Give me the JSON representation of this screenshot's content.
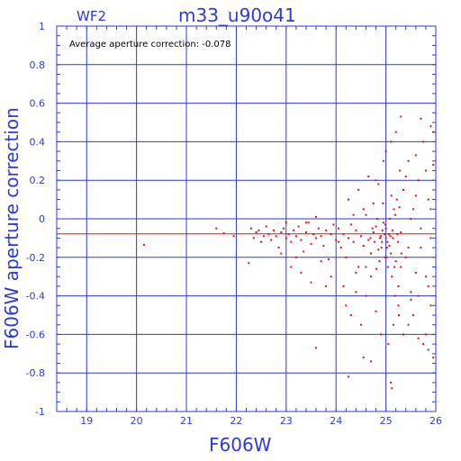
{
  "chart_data": {
    "type": "scatter",
    "detector_label": "WF2",
    "title": "m33_u90o41",
    "xlabel": "F606W",
    "ylabel": "F606W aperture correction",
    "annotation": "Average aperture correction: -0.078",
    "average": -0.078,
    "xlim": [
      18.4,
      26.0
    ],
    "ylim": [
      -1.0,
      1.0
    ],
    "x_ticks": [
      19,
      20,
      21,
      22,
      23,
      24,
      25,
      26
    ],
    "y_ticks": [
      -1,
      -0.8,
      -0.6,
      -0.4,
      -0.2,
      0,
      0.2,
      0.4,
      0.6,
      0.8,
      1
    ],
    "y_tick_labels": [
      "-1",
      "-0.8",
      "-0.6",
      "-0.4",
      "-0.2",
      "0",
      "0.2",
      "0.4",
      "0.6",
      "0.8",
      "1"
    ],
    "grid": true,
    "colors": {
      "axes": "#2b3bd6",
      "points": "#e01010",
      "average_line": "#e01010"
    },
    "points": [
      [
        20.15,
        -0.135
      ],
      [
        21.6,
        -0.05
      ],
      [
        21.75,
        -0.075
      ],
      [
        21.95,
        -0.09
      ],
      [
        22.25,
        -0.23
      ],
      [
        22.3,
        -0.05
      ],
      [
        22.35,
        -0.1
      ],
      [
        22.4,
        -0.07
      ],
      [
        22.45,
        -0.06
      ],
      [
        22.5,
        -0.12
      ],
      [
        22.55,
        -0.09
      ],
      [
        22.6,
        -0.04
      ],
      [
        22.65,
        -0.08
      ],
      [
        22.7,
        -0.11
      ],
      [
        22.75,
        -0.06
      ],
      [
        22.8,
        -0.09
      ],
      [
        22.85,
        -0.15
      ],
      [
        22.9,
        -0.07
      ],
      [
        22.95,
        -0.05
      ],
      [
        23.0,
        -0.1
      ],
      [
        23.05,
        -0.08
      ],
      [
        23.1,
        -0.12
      ],
      [
        23.15,
        -0.06
      ],
      [
        23.2,
        -0.09
      ],
      [
        23.25,
        -0.04
      ],
      [
        23.3,
        -0.11
      ],
      [
        23.35,
        -0.17
      ],
      [
        23.4,
        -0.07
      ],
      [
        23.45,
        -0.02
      ],
      [
        23.5,
        -0.13
      ],
      [
        23.55,
        -0.08
      ],
      [
        23.6,
        -0.1
      ],
      [
        23.65,
        -0.05
      ],
      [
        23.7,
        -0.09
      ],
      [
        23.75,
        -0.14
      ],
      [
        23.8,
        -0.06
      ],
      [
        23.85,
        -0.21
      ],
      [
        23.9,
        -0.08
      ],
      [
        23.95,
        -0.03
      ],
      [
        24.0,
        -0.11
      ],
      [
        23.1,
        -0.25
      ],
      [
        23.3,
        -0.28
      ],
      [
        23.5,
        -0.33
      ],
      [
        23.7,
        -0.22
      ],
      [
        23.9,
        -0.3
      ],
      [
        23.6,
        -0.67
      ],
      [
        23.2,
        -0.2
      ],
      [
        23.8,
        -0.35
      ],
      [
        23.4,
        -0.02
      ],
      [
        23.0,
        -0.02
      ],
      [
        22.9,
        -0.18
      ],
      [
        23.6,
        0.01
      ],
      [
        24.05,
        -0.05
      ],
      [
        24.1,
        -0.15
      ],
      [
        24.15,
        -0.08
      ],
      [
        24.2,
        -0.2
      ],
      [
        24.25,
        -0.1
      ],
      [
        24.3,
        -0.03
      ],
      [
        24.35,
        -0.12
      ],
      [
        24.4,
        -0.06
      ],
      [
        24.45,
        -0.25
      ],
      [
        24.5,
        -0.09
      ],
      [
        24.55,
        -0.14
      ],
      [
        24.6,
        0.02
      ],
      [
        24.65,
        -0.11
      ],
      [
        24.7,
        -0.18
      ],
      [
        24.75,
        -0.07
      ],
      [
        24.8,
        -0.04
      ],
      [
        24.85,
        -0.16
      ],
      [
        24.9,
        -0.09
      ],
      [
        24.2,
        -0.45
      ],
      [
        24.3,
        -0.5
      ],
      [
        24.4,
        -0.38
      ],
      [
        24.5,
        -0.55
      ],
      [
        24.6,
        -0.4
      ],
      [
        24.7,
        -0.3
      ],
      [
        24.8,
        -0.48
      ],
      [
        24.9,
        -0.6
      ],
      [
        24.25,
        0.1
      ],
      [
        24.45,
        0.15
      ],
      [
        24.55,
        0.05
      ],
      [
        24.65,
        0.22
      ],
      [
        24.75,
        0.08
      ],
      [
        24.85,
        0.18
      ],
      [
        24.95,
        0.3
      ],
      [
        24.35,
        0.02
      ],
      [
        24.7,
        -0.74
      ],
      [
        24.55,
        -0.72
      ],
      [
        24.25,
        -0.82
      ],
      [
        24.8,
        0.2
      ],
      [
        24.6,
        -0.25
      ],
      [
        24.4,
        -0.28
      ],
      [
        24.15,
        -0.35
      ],
      [
        24.05,
        -0.12
      ],
      [
        24.95,
        -0.02
      ],
      [
        24.92,
        -0.12
      ],
      [
        24.98,
        -0.2
      ],
      [
        25.0,
        -0.05
      ],
      [
        25.02,
        -0.15
      ],
      [
        25.04,
        -0.25
      ],
      [
        25.06,
        -0.08
      ],
      [
        25.08,
        0.0
      ],
      [
        25.1,
        -0.18
      ],
      [
        25.12,
        -0.3
      ],
      [
        25.14,
        -0.1
      ],
      [
        25.16,
        0.05
      ],
      [
        25.18,
        -0.4
      ],
      [
        25.2,
        -0.22
      ],
      [
        25.22,
        0.1
      ],
      [
        25.24,
        -0.12
      ],
      [
        25.26,
        -0.5
      ],
      [
        25.28,
        0.25
      ],
      [
        25.0,
        0.35
      ],
      [
        25.05,
        -0.65
      ],
      [
        25.1,
        0.4
      ],
      [
        25.15,
        -0.55
      ],
      [
        25.2,
        0.45
      ],
      [
        25.25,
        -0.35
      ],
      [
        25.3,
        -0.07
      ],
      [
        25.35,
        0.15
      ],
      [
        25.4,
        -0.2
      ],
      [
        25.45,
        0.3
      ],
      [
        25.5,
        -0.42
      ],
      [
        25.55,
        0.05
      ],
      [
        25.6,
        -0.28
      ],
      [
        25.65,
        0.2
      ],
      [
        25.7,
        -0.15
      ],
      [
        25.75,
        0.4
      ],
      [
        25.8,
        -0.6
      ],
      [
        25.85,
        0.1
      ],
      [
        25.9,
        -0.45
      ],
      [
        25.95,
        0.28
      ],
      [
        25.3,
        0.53
      ],
      [
        25.7,
        0.52
      ],
      [
        25.9,
        0.48
      ],
      [
        25.95,
        0.45
      ],
      [
        25.1,
        -0.85
      ],
      [
        25.12,
        -0.88
      ],
      [
        25.5,
        -0.38
      ],
      [
        25.6,
        0.12
      ],
      [
        25.8,
        -0.3
      ],
      [
        25.9,
        0.05
      ],
      [
        25.35,
        -0.6
      ],
      [
        25.45,
        -0.15
      ],
      [
        25.55,
        -0.5
      ],
      [
        25.65,
        -0.62
      ],
      [
        25.75,
        -0.65
      ],
      [
        25.85,
        -0.68
      ],
      [
        25.95,
        -0.72
      ],
      [
        25.4,
        0.22
      ],
      [
        25.6,
        0.33
      ],
      [
        25.8,
        0.25
      ],
      [
        25.3,
        -0.25
      ],
      [
        25.5,
        0.0
      ],
      [
        25.7,
        -0.05
      ],
      [
        25.9,
        -0.1
      ],
      [
        25.25,
        -0.45
      ],
      [
        25.45,
        -0.55
      ],
      [
        25.65,
        -0.4
      ],
      [
        25.85,
        -0.35
      ],
      [
        25.0,
        -0.1
      ],
      [
        24.97,
        -0.08
      ],
      [
        25.03,
        -0.12
      ],
      [
        24.93,
        -0.06
      ],
      [
        25.07,
        -0.14
      ],
      [
        24.88,
        -0.1
      ],
      [
        25.01,
        -0.2
      ],
      [
        24.99,
        -0.03
      ],
      [
        25.09,
        -0.09
      ],
      [
        24.91,
        -0.15
      ],
      [
        25.13,
        -0.06
      ],
      [
        24.87,
        -0.22
      ],
      [
        25.11,
        0.12
      ],
      [
        24.94,
        0.08
      ],
      [
        25.17,
        -0.25
      ],
      [
        24.83,
        0.0
      ],
      [
        25.19,
        0.02
      ],
      [
        24.81,
        -0.26
      ],
      [
        25.23,
        -0.08
      ],
      [
        24.77,
        -0.12
      ],
      [
        25.27,
        0.06
      ],
      [
        24.73,
        -0.05
      ],
      [
        25.31,
        -0.18
      ],
      [
        24.69,
        -0.1
      ]
    ]
  }
}
